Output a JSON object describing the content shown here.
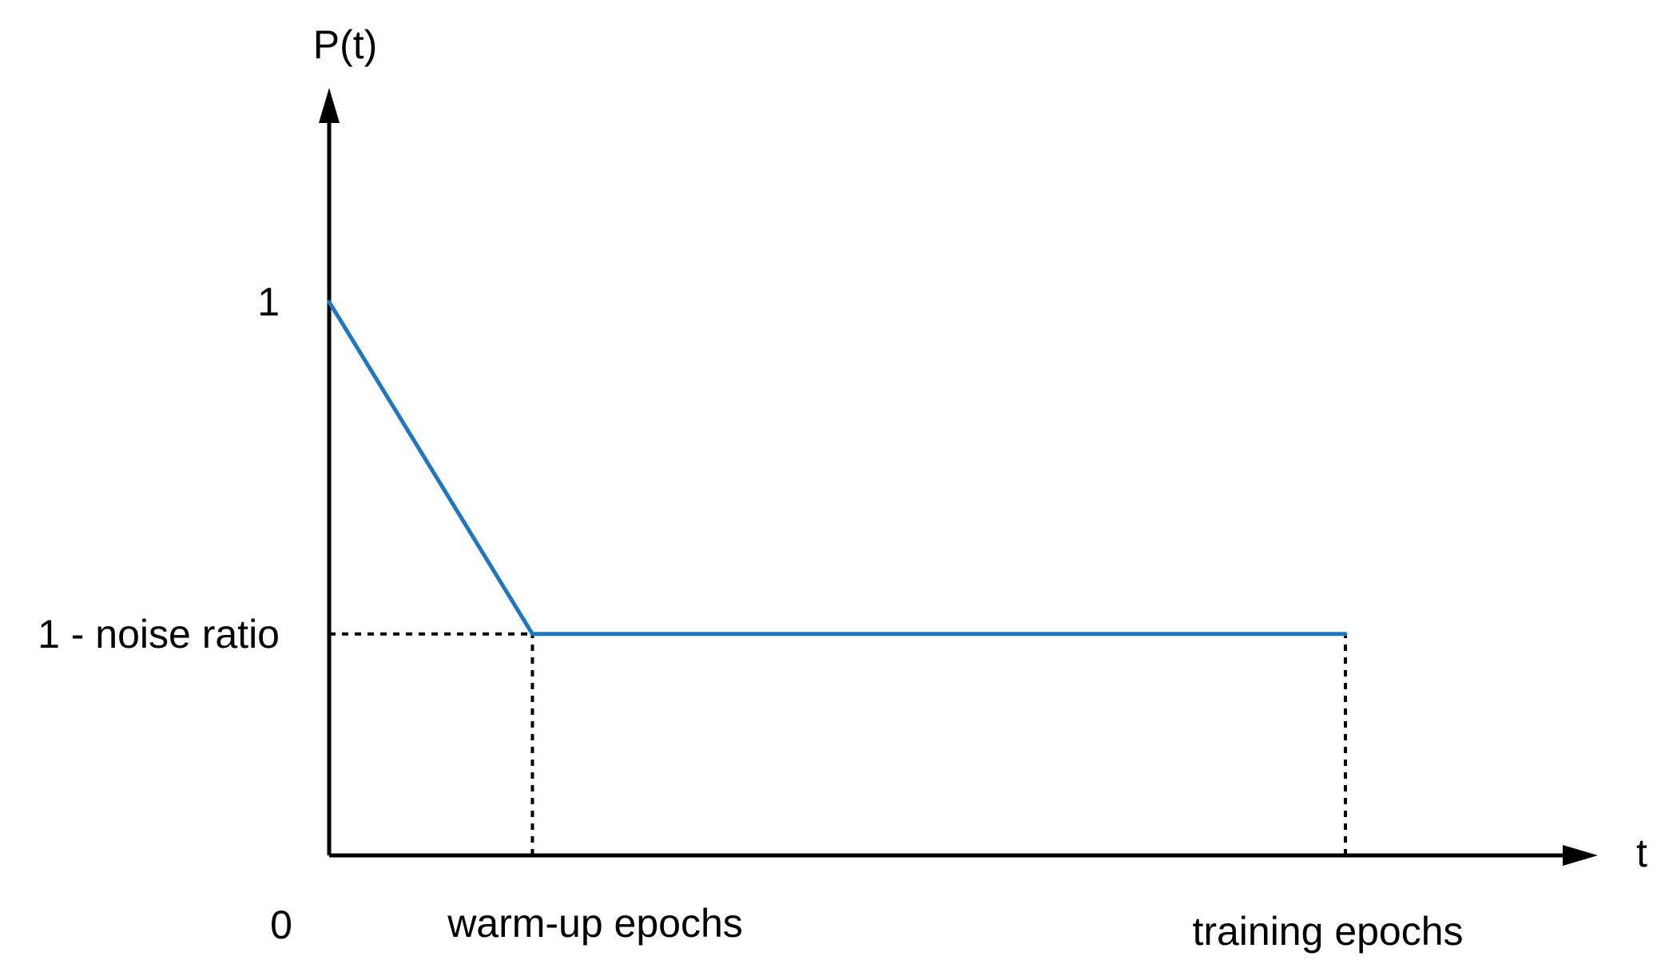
{
  "chart_data": {
    "type": "line",
    "xlabel": "t",
    "ylabel": "P(t)",
    "x_ticks": [
      {
        "value": 0,
        "label": "0"
      },
      {
        "value": 1,
        "label": "warm-up epochs"
      },
      {
        "value": 5,
        "label": "training epochs"
      }
    ],
    "y_ticks": [
      {
        "value": 1,
        "label": "1"
      },
      {
        "value": 0.4,
        "label": "1 - noise ratio"
      }
    ],
    "series": [
      {
        "color": "#1f77c4",
        "points": [
          {
            "x": 0,
            "y": 1
          },
          {
            "x": 1,
            "y": 0.4
          },
          {
            "x": 5,
            "y": 0.4
          }
        ]
      }
    ],
    "guides": [
      {
        "from": {
          "x": 0,
          "y": 0.4
        },
        "to": {
          "x": 1,
          "y": 0.4
        }
      },
      {
        "from": {
          "x": 1,
          "y": 0
        },
        "to": {
          "x": 1,
          "y": 0.4
        }
      },
      {
        "from": {
          "x": 5,
          "y": 0
        },
        "to": {
          "x": 5,
          "y": 0.4
        }
      }
    ],
    "axis_color": "#000000",
    "guide_color": "#000000",
    "grid": false,
    "legend": "none"
  }
}
